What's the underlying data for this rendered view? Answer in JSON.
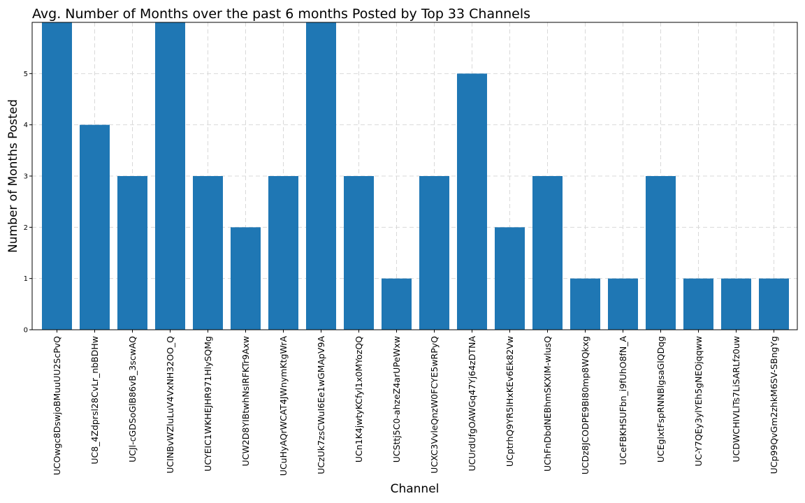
{
  "chart_data": {
    "type": "bar",
    "title": "Avg. Number of Months over the past 6 months Posted by Top 33 Channels",
    "xlabel": "Channel",
    "ylabel": "Number of Months Posted",
    "categories": [
      "UCOwgc8DswjoBMuuUU2ScPvQ",
      "UC8_4Zdprsl28CvLr_nbBDHw",
      "UCJl-cGDSoGlB86vB_3scwAQ",
      "UCINBvWZluLuV4VxNH32OO_Q",
      "UCYEIC1WKHEJHR971HlySQMg",
      "UCW2D8YIBtwhNsIRFKTr9Axw",
      "UCuHyAQrWCAT4JWnymKtgWrA",
      "UCzUk7zsCWuI6Ee1wGMApV9A",
      "UCn1K4jwtyKCfyl1x0MYozQQ",
      "UCSttj5C0-ahzeZ4arUPeWxw",
      "UCXC3VvleQnzW0FCYE5wRPyQ",
      "UCUrdUfgOAWGq47Yj64zDTNA",
      "UCptrhQ9YR5lHxKEv6Ek82Vw",
      "UChFnDbdNEBhmSKXIM-wlusQ",
      "UCDz8JCODPE9BI80mp8WQkxg",
      "UCeFBKHSUFbn_i9fUhO8fN_A",
      "UCEglxtFspRNNBlgsaGlQDqg",
      "UC-Y7QEy3ylYEh5gNEOjqqww",
      "UCDWCHIVLlTs7LiSARLfz0uw",
      "UCp99QvGm2zhkM6SV-SBngYg"
    ],
    "values": [
      6,
      4,
      3,
      6,
      3,
      2,
      3,
      6,
      3,
      1,
      3,
      5,
      2,
      3,
      1,
      1,
      3,
      1,
      1,
      1
    ],
    "ylim": [
      0,
      6
    ],
    "yticks": [
      "0",
      "1",
      "2",
      "3",
      "4",
      "5"
    ],
    "grid": true,
    "colors": {
      "bar": "#1f77b4",
      "grid": "#d9d9d9",
      "axis": "#000000"
    }
  }
}
